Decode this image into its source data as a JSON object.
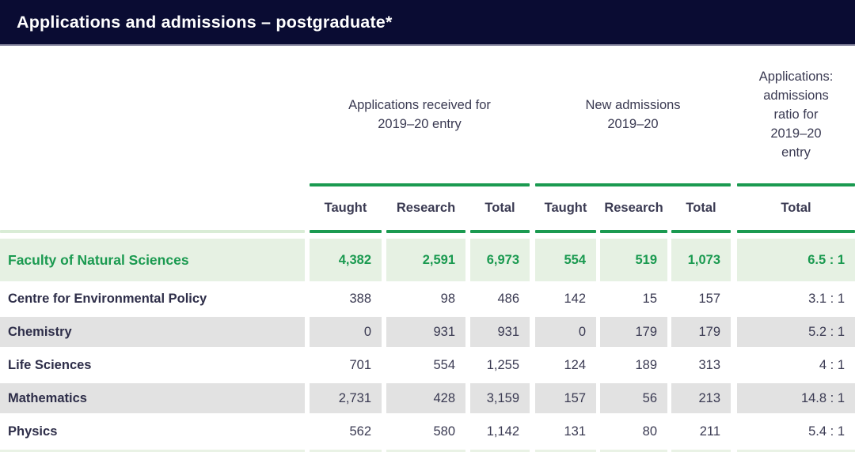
{
  "title": "Applications and admissions – postgraduate*",
  "colors": {
    "navy_bar": "#0a0c33",
    "accent_green": "#1a9a50",
    "highlight_row_bg": "#e6f1e3",
    "stripe_gray": "#e2e2e2",
    "text_slate": "#3a3a52"
  },
  "table": {
    "group_headers": [
      "Applications received for 2019–20 entry",
      "New admissions 2019–20",
      "Applications: admissions ratio for 2019–20 entry"
    ],
    "sub_headers": [
      "Taught",
      "Research",
      "Total",
      "Taught",
      "Research",
      "Total",
      "Total"
    ],
    "rows": [
      {
        "label": "Faculty of Natural Sciences",
        "highlight": true,
        "values": [
          "4,382",
          "2,591",
          "6,973",
          "554",
          "519",
          "1,073",
          "6.5 : 1"
        ]
      },
      {
        "label": "Centre for Environmental Policy",
        "highlight": false,
        "values": [
          "388",
          "98",
          "486",
          "142",
          "15",
          "157",
          "3.1 : 1"
        ]
      },
      {
        "label": "Chemistry",
        "highlight": false,
        "values": [
          "0",
          "931",
          "931",
          "0",
          "179",
          "179",
          "5.2 : 1"
        ]
      },
      {
        "label": "Life Sciences",
        "highlight": false,
        "values": [
          "701",
          "554",
          "1,255",
          "124",
          "189",
          "313",
          "4 : 1"
        ]
      },
      {
        "label": "Mathematics",
        "highlight": false,
        "values": [
          "2,731",
          "428",
          "3,159",
          "157",
          "56",
          "213",
          "14.8 : 1"
        ]
      },
      {
        "label": "Physics",
        "highlight": false,
        "values": [
          "562",
          "580",
          "1,142",
          "131",
          "80",
          "211",
          "5.4 : 1"
        ]
      }
    ]
  }
}
